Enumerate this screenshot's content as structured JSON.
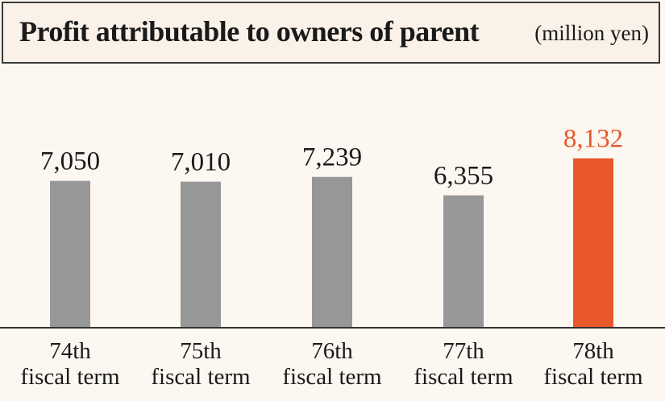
{
  "header": {
    "title": "Profit attributable to owners of parent",
    "unit": "(million yen)"
  },
  "colors": {
    "bar": "#979797",
    "highlight": "#e8582a",
    "text": "#1a1a1a",
    "axis": "#333333",
    "background": "#fdf7f1"
  },
  "chart_data": {
    "type": "bar",
    "title": "Profit attributable to owners of parent",
    "unit": "(million yen)",
    "categories": [
      [
        "74th",
        "fiscal term"
      ],
      [
        "75th",
        "fiscal term"
      ],
      [
        "76th",
        "fiscal term"
      ],
      [
        "77th",
        "fiscal term"
      ],
      [
        "78th",
        "fiscal term"
      ]
    ],
    "values": [
      7050,
      7010,
      7239,
      6355,
      8132
    ],
    "value_labels": [
      "7,050",
      "7,010",
      "7,239",
      "6,355",
      "8,132"
    ],
    "highlight_index": 4,
    "grid": false,
    "legend": "none"
  }
}
